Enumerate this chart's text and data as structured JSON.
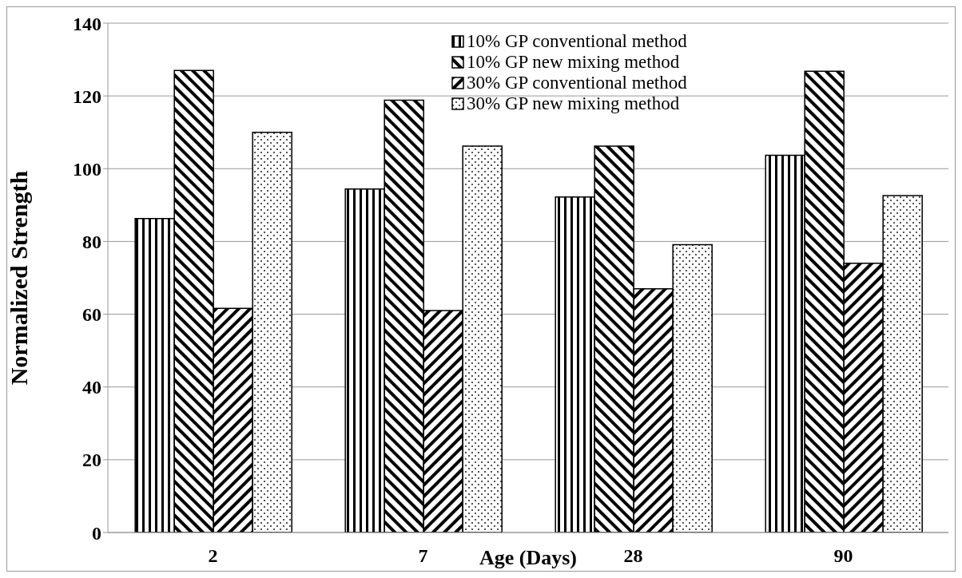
{
  "chart_data": {
    "type": "bar",
    "xlabel": "Age (Days)",
    "ylabel": "Normalized Strength",
    "categories": [
      "2",
      "7",
      "28",
      "90"
    ],
    "series": [
      {
        "name": "10% GP conventional method",
        "color": "#000000",
        "values": [
          86.3,
          94.4,
          92.2,
          103.7
        ]
      },
      {
        "name": "10% GP new mixing method",
        "color": "#000000",
        "values": [
          127,
          118.8,
          106.2,
          126.8
        ]
      },
      {
        "name": "30% GP conventional method",
        "color": "#000000",
        "values": [
          61.6,
          61,
          67,
          74
        ]
      },
      {
        "name": "30% GP new mixing method",
        "color": "#000000",
        "values": [
          110,
          106.2,
          79.1,
          92.6
        ]
      }
    ],
    "ylim": [
      0,
      140
    ],
    "yticks": [
      0,
      20,
      40,
      60,
      80,
      100,
      120,
      140
    ],
    "grid": "y",
    "legend": "top right"
  }
}
